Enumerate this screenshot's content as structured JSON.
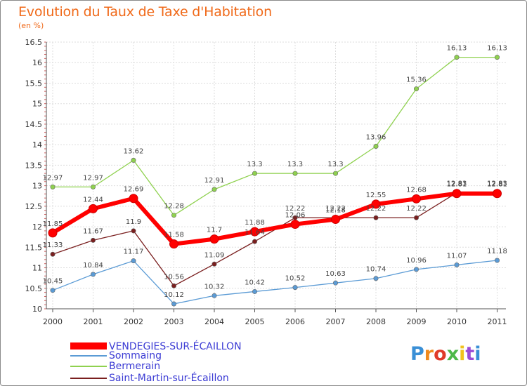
{
  "header": {
    "title": "Evolution du Taux de Taxe d'Habitation",
    "subtitle": "(en %)"
  },
  "logo": {
    "text": "Proxiti",
    "colors": [
      "#3a8fd6",
      "#f08a1e",
      "#e03a2a",
      "#4db848",
      "#f0c21e",
      "#9a4bd6",
      "#3a8fd6"
    ]
  },
  "chart_data": {
    "type": "line",
    "title": "Evolution du Taux de Taxe d'Habitation",
    "ylabel": "(en %)",
    "x": [
      "2000",
      "2001",
      "2002",
      "2003",
      "2004",
      "2005",
      "2006",
      "2007",
      "2008",
      "2009",
      "2010",
      "2011"
    ],
    "ylim": [
      10,
      16.5
    ],
    "yticks": [
      "10",
      "10.5",
      "11",
      "11.5",
      "12",
      "12.5",
      "13",
      "13.5",
      "14",
      "14.5",
      "15",
      "15.5",
      "16",
      "16.5"
    ],
    "legend_position": "bottom-left",
    "series": [
      {
        "name": "VENDEGIES-SUR-ÉCAILLON",
        "color": "#ff0000",
        "text_color": "#3b3bd4",
        "values": [
          11.85,
          12.44,
          12.69,
          11.58,
          11.7,
          11.88,
          12.06,
          12.18,
          12.55,
          12.68,
          12.81,
          12.81
        ],
        "labels": [
          "11.85",
          "12.44",
          "12.69",
          "11.58",
          "11.7",
          "11.88",
          "12.06",
          "12.18",
          "12.55",
          "12.68",
          "12.81",
          "12.81"
        ]
      },
      {
        "name": "Sommaing",
        "color": "#5b9bd5",
        "text_color": "#5b9bd5",
        "values": [
          10.45,
          10.84,
          11.17,
          10.12,
          10.32,
          10.42,
          10.52,
          10.63,
          10.74,
          10.96,
          11.07,
          11.18
        ],
        "labels": [
          "10.45",
          "10.84",
          "11.17",
          "10.12",
          "10.32",
          "10.42",
          "10.52",
          "10.63",
          "10.74",
          "10.96",
          "11.07",
          "11.18"
        ]
      },
      {
        "name": "Bermerain",
        "color": "#8fd14f",
        "text_color": "#8fd14f",
        "values": [
          12.97,
          12.97,
          13.62,
          12.28,
          12.91,
          13.3,
          13.3,
          13.3,
          13.96,
          15.36,
          16.13,
          16.13
        ],
        "labels": [
          "12.97",
          "12.97",
          "13.62",
          "12.28",
          "12.91",
          "13.3",
          "13.3",
          "13.3",
          "13.96",
          "15.36",
          "16.13",
          "16.13"
        ]
      },
      {
        "name": "Saint-Martin-sur-Écaillon",
        "color": "#7a1f1f",
        "text_color": "#3b3bd4",
        "values": [
          11.33,
          11.67,
          11.9,
          10.56,
          11.09,
          11.64,
          12.22,
          12.22,
          12.22,
          12.22,
          12.83,
          12.83
        ],
        "labels": [
          "11.33",
          "11.67",
          "11.9",
          "10.56",
          "11.09",
          "11.64",
          "12.22",
          "12.22",
          "12.22",
          "12.22",
          "12.83",
          "12.83"
        ]
      }
    ]
  }
}
